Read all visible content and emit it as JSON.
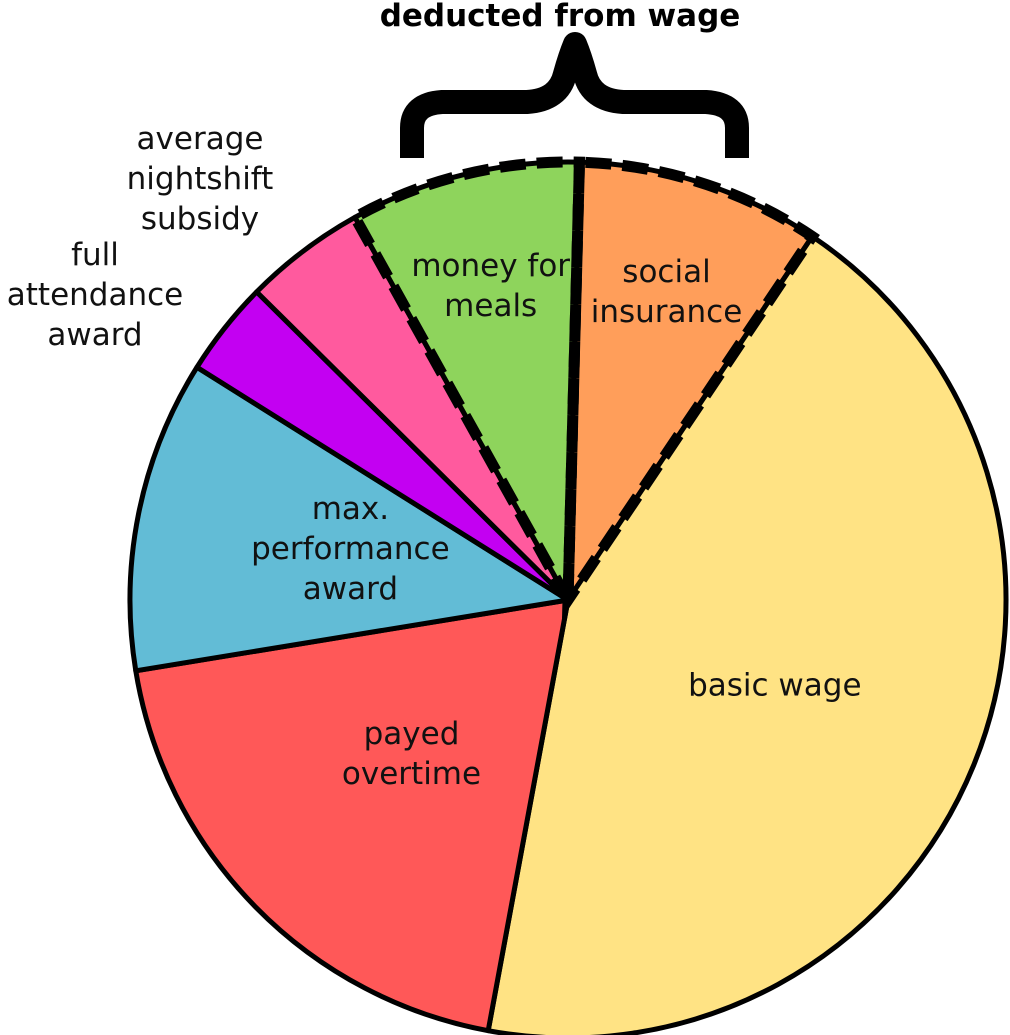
{
  "chart_data": {
    "type": "pie",
    "title": "",
    "bracket_label": "deducted from wage",
    "slices": [
      {
        "label": [
          "social",
          "insurance"
        ],
        "value": 9.0,
        "color": "#FF9E5A",
        "deducted": true
      },
      {
        "label": [
          "basic wage"
        ],
        "value": 43.5,
        "color": "#FFE384",
        "deducted": false
      },
      {
        "label": [
          "payed",
          "overtime"
        ],
        "value": 19.5,
        "color": "#FF5858",
        "deducted": false
      },
      {
        "label": [
          "max.",
          "performance",
          "award"
        ],
        "value": 11.5,
        "color": "#62BCD6",
        "deducted": false
      },
      {
        "label": [
          "full",
          "attendance",
          "award"
        ],
        "value": 3.5,
        "color": "#C300F2",
        "deducted": false
      },
      {
        "label": [
          "average",
          "nightshift",
          "subsidy"
        ],
        "value": 4.5,
        "color": "#FF5A9E",
        "deducted": false
      },
      {
        "label": [
          "money for",
          "meals"
        ],
        "value": 8.5,
        "color": "#8ED45C",
        "deducted": true
      }
    ]
  }
}
